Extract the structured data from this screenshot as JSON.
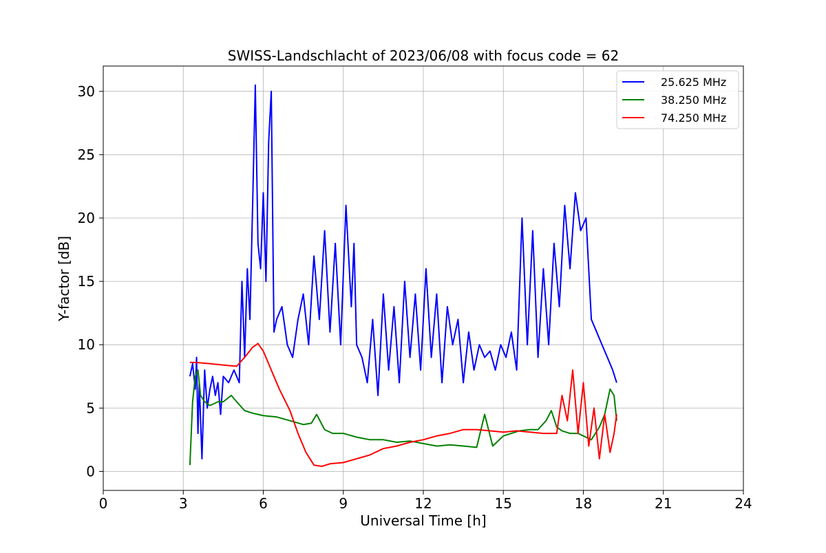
{
  "chart_data": {
    "type": "line",
    "title": "SWISS-Landschlacht of 2023/06/08 with focus code = 62",
    "xlabel": "Universal Time [h]",
    "ylabel": "Y-factor [dB]",
    "xlim": [
      0,
      24
    ],
    "ylim": [
      -1.5,
      32
    ],
    "xticks": [
      0,
      3,
      6,
      9,
      12,
      15,
      18,
      21,
      24
    ],
    "yticks": [
      0,
      5,
      10,
      15,
      20,
      25,
      30
    ],
    "grid": true,
    "legend_position": "top-right",
    "series": [
      {
        "name": "25.625 MHz",
        "color": "#0000ff",
        "x": [
          3.25,
          3.35,
          3.45,
          3.5,
          3.55,
          3.6,
          3.7,
          3.8,
          3.9,
          4.0,
          4.1,
          4.2,
          4.3,
          4.4,
          4.5,
          4.7,
          4.9,
          5.0,
          5.1,
          5.2,
          5.3,
          5.4,
          5.5,
          5.6,
          5.7,
          5.8,
          5.9,
          6.0,
          6.1,
          6.2,
          6.3,
          6.4,
          6.5,
          6.7,
          6.9,
          7.1,
          7.3,
          7.5,
          7.7,
          7.9,
          8.1,
          8.3,
          8.5,
          8.7,
          8.9,
          9.1,
          9.3,
          9.4,
          9.5,
          9.7,
          9.9,
          10.1,
          10.3,
          10.5,
          10.7,
          10.9,
          11.1,
          11.3,
          11.5,
          11.7,
          11.9,
          12.1,
          12.3,
          12.5,
          12.7,
          12.9,
          13.1,
          13.3,
          13.5,
          13.7,
          13.9,
          14.1,
          14.3,
          14.5,
          14.7,
          14.9,
          15.1,
          15.3,
          15.5,
          15.7,
          15.9,
          16.1,
          16.3,
          16.5,
          16.7,
          16.9,
          17.1,
          17.3,
          17.5,
          17.7,
          17.9,
          18.1,
          18.3,
          18.5,
          18.7,
          18.9,
          19.1,
          19.25
        ],
        "y": [
          7.5,
          8.5,
          6.5,
          9.0,
          3.0,
          7.0,
          1.0,
          8.0,
          5.0,
          6.5,
          7.5,
          6.0,
          7.0,
          4.5,
          7.5,
          7.0,
          8.0,
          7.5,
          7.0,
          15.0,
          9.0,
          16.0,
          12.0,
          21.0,
          30.5,
          18.0,
          16.0,
          22.0,
          15.0,
          26.0,
          30.0,
          11.0,
          12.0,
          13.0,
          10.0,
          9.0,
          12.0,
          14.0,
          10.0,
          17.0,
          12.0,
          19.0,
          11.0,
          18.0,
          10.0,
          21.0,
          13.0,
          18.0,
          10.0,
          9.0,
          7.0,
          12.0,
          6.0,
          14.0,
          8.0,
          13.0,
          7.0,
          15.0,
          9.0,
          14.0,
          8.0,
          16.0,
          9.0,
          14.0,
          7.0,
          13.0,
          10.0,
          12.0,
          7.0,
          11.0,
          8.0,
          10.0,
          9.0,
          9.5,
          8.0,
          10.0,
          9.0,
          11.0,
          8.0,
          20.0,
          10.0,
          19.0,
          9.0,
          16.0,
          10.0,
          18.0,
          13.0,
          21.0,
          16.0,
          22.0,
          19.0,
          20.0,
          12.0,
          11.0,
          10.0,
          9.0,
          8.0,
          7.0
        ]
      },
      {
        "name": "38.250 MHz",
        "color": "#008000",
        "x": [
          3.25,
          3.35,
          3.45,
          3.55,
          3.65,
          3.8,
          4.0,
          4.3,
          4.5,
          4.8,
          5.0,
          5.3,
          5.6,
          6.0,
          6.5,
          7.0,
          7.5,
          7.8,
          8.0,
          8.3,
          8.6,
          9.0,
          9.5,
          10.0,
          10.5,
          11.0,
          11.5,
          12.0,
          12.5,
          13.0,
          13.5,
          14.0,
          14.3,
          14.6,
          15.0,
          15.3,
          15.6,
          16.0,
          16.3,
          16.6,
          16.8,
          17.0,
          17.2,
          17.5,
          17.8,
          18.0,
          18.3,
          18.6,
          18.8,
          19.0,
          19.15,
          19.25
        ],
        "y": [
          0.5,
          5.5,
          7.5,
          8.0,
          6.0,
          5.5,
          5.2,
          5.5,
          5.5,
          6.0,
          5.5,
          4.8,
          4.6,
          4.4,
          4.3,
          4.0,
          3.7,
          3.8,
          4.5,
          3.3,
          3.0,
          3.0,
          2.7,
          2.5,
          2.5,
          2.3,
          2.4,
          2.2,
          2.0,
          2.1,
          2.0,
          1.9,
          4.5,
          2.0,
          2.8,
          3.0,
          3.2,
          3.3,
          3.3,
          4.0,
          4.8,
          3.5,
          3.2,
          3.0,
          3.0,
          2.8,
          2.5,
          3.5,
          4.5,
          6.5,
          6.0,
          4.0
        ]
      },
      {
        "name": "74.250 MHz",
        "color": "#ff0000",
        "x": [
          3.25,
          3.5,
          4.0,
          4.5,
          5.0,
          5.3,
          5.6,
          5.8,
          6.0,
          6.3,
          6.6,
          7.0,
          7.3,
          7.6,
          7.9,
          8.2,
          8.5,
          9.0,
          9.5,
          10.0,
          10.5,
          11.0,
          11.5,
          12.0,
          12.5,
          13.0,
          13.5,
          14.0,
          14.5,
          15.0,
          15.5,
          16.0,
          16.5,
          17.0,
          17.2,
          17.4,
          17.6,
          17.8,
          18.0,
          18.2,
          18.4,
          18.6,
          18.8,
          19.0,
          19.15,
          19.25
        ],
        "y": [
          8.6,
          8.6,
          8.5,
          8.4,
          8.3,
          9.0,
          9.8,
          10.1,
          9.5,
          8.0,
          6.5,
          4.8,
          3.0,
          1.5,
          0.5,
          0.4,
          0.6,
          0.7,
          1.0,
          1.3,
          1.8,
          2.0,
          2.3,
          2.5,
          2.8,
          3.0,
          3.3,
          3.3,
          3.2,
          3.1,
          3.2,
          3.1,
          3.0,
          3.0,
          6.0,
          4.0,
          8.0,
          3.0,
          7.0,
          2.0,
          5.0,
          1.0,
          4.5,
          1.5,
          3.0,
          4.5
        ]
      }
    ]
  }
}
